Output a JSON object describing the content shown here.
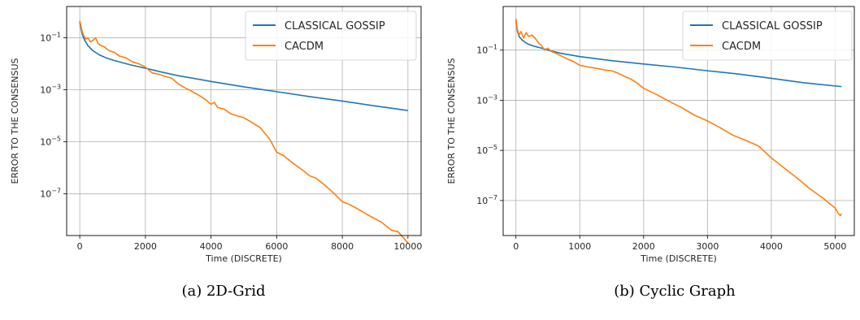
{
  "chart_data": [
    {
      "type": "line",
      "caption": "(a) 2D-Grid",
      "xlabel": "Time (DISCRETE)",
      "ylabel": "ERROR TO THE CONSENSUS",
      "xscale": "linear",
      "yscale": "log",
      "xlim": [
        -400,
        10400
      ],
      "ylim": [
        2.5e-09,
        1.6
      ],
      "xticks": [
        0,
        2000,
        4000,
        6000,
        8000,
        10000
      ],
      "xtick_labels": [
        "0",
        "2000",
        "4000",
        "6000",
        "8000",
        "10000"
      ],
      "yticks": [
        1e-07,
        1e-05,
        0.001,
        0.1
      ],
      "ytick_labels": [
        "10",
        "10",
        "10",
        "10"
      ],
      "ytick_exponents": [
        "−7",
        "−5",
        "−3",
        "−1"
      ],
      "grid": true,
      "legend_position": "top-right",
      "series": [
        {
          "name": "CLASSICAL GOSSIP",
          "color": "#1f77b4",
          "x": [
            0,
            30,
            80,
            150,
            250,
            400,
            600,
            800,
            1000,
            1300,
            1600,
            2000,
            2500,
            3000,
            4000,
            5000,
            6000,
            7000,
            8000,
            9000,
            10000
          ],
          "y": [
            0.4,
            0.25,
            0.13,
            0.08,
            0.05,
            0.032,
            0.022,
            0.017,
            0.014,
            0.011,
            0.0088,
            0.0068,
            0.0048,
            0.0035,
            0.0021,
            0.0013,
            0.00085,
            0.00055,
            0.00037,
            0.00024,
            0.00016
          ]
        },
        {
          "name": "CACDM",
          "color": "#ff7f0e",
          "x": [
            0,
            20,
            60,
            120,
            180,
            250,
            320,
            400,
            480,
            560,
            650,
            750,
            850,
            950,
            1050,
            1200,
            1400,
            1600,
            1800,
            2000,
            2200,
            2400,
            2600,
            2800,
            3000,
            3200,
            3400,
            3500,
            3600,
            3800,
            4000,
            4100,
            4200,
            4400,
            4600,
            4800,
            5000,
            5200,
            5500,
            5800,
            6000,
            6200,
            6500,
            6800,
            7000,
            7200,
            7500,
            7800,
            8000,
            8200,
            8500,
            8800,
            9000,
            9200,
            9500,
            9700,
            9900,
            10000
          ],
          "y": [
            0.45,
            0.35,
            0.2,
            0.12,
            0.09,
            0.1,
            0.07,
            0.08,
            0.1,
            0.06,
            0.05,
            0.045,
            0.035,
            0.03,
            0.028,
            0.02,
            0.017,
            0.012,
            0.01,
            0.0075,
            0.0045,
            0.004,
            0.0033,
            0.0028,
            0.0017,
            0.0012,
            0.0009,
            0.00075,
            0.00065,
            0.00045,
            0.00028,
            0.00033,
            0.00021,
            0.00018,
            0.00012,
            0.0001,
            8.5e-05,
            6e-05,
            3.5e-05,
            1.2e-05,
            4e-06,
            3e-06,
            1.5e-06,
            8e-07,
            5e-07,
            4e-07,
            2e-07,
            9e-08,
            5e-08,
            4e-08,
            2.5e-08,
            1.5e-08,
            1.1e-08,
            8e-09,
            4e-09,
            3.5e-09,
            1.8e-09,
            1.3e-09
          ]
        }
      ]
    },
    {
      "type": "line",
      "caption": "(b) Cyclic Graph",
      "xlabel": "Time (DISCRETE)",
      "ylabel": "ERROR TO THE CONSENSUS",
      "xscale": "linear",
      "yscale": "log",
      "xlim": [
        -200,
        5300
      ],
      "ylim": [
        4e-09,
        5.5
      ],
      "xticks": [
        0,
        1000,
        2000,
        3000,
        4000,
        5000
      ],
      "xtick_labels": [
        "0",
        "1000",
        "2000",
        "3000",
        "4000",
        "5000"
      ],
      "yticks": [
        1e-07,
        1e-05,
        0.001,
        0.1
      ],
      "ytick_labels": [
        "10",
        "10",
        "10",
        "10"
      ],
      "ytick_exponents": [
        "−7",
        "−5",
        "−3",
        "−1"
      ],
      "grid": true,
      "legend_position": "top-right",
      "series": [
        {
          "name": "CLASSICAL GOSSIP",
          "color": "#1f77b4",
          "x": [
            0,
            20,
            50,
            100,
            150,
            200,
            300,
            400,
            500,
            700,
            1000,
            1500,
            2000,
            2500,
            3000,
            3500,
            4000,
            4500,
            5000,
            5100
          ],
          "y": [
            1.5,
            0.6,
            0.35,
            0.25,
            0.2,
            0.17,
            0.14,
            0.12,
            0.1,
            0.075,
            0.055,
            0.038,
            0.028,
            0.021,
            0.015,
            0.011,
            0.0075,
            0.005,
            0.0037,
            0.0035
          ]
        },
        {
          "name": "CACDM",
          "color": "#ff7f0e",
          "x": [
            0,
            20,
            50,
            80,
            120,
            160,
            200,
            250,
            300,
            350,
            400,
            450,
            500,
            550,
            600,
            700,
            800,
            900,
            1000,
            1100,
            1200,
            1300,
            1400,
            1500,
            1600,
            1700,
            1800,
            1900,
            2000,
            2200,
            2400,
            2600,
            2800,
            3000,
            3200,
            3400,
            3600,
            3800,
            4000,
            4200,
            4400,
            4600,
            4800,
            4900,
            5000,
            5050,
            5080,
            5100
          ],
          "y": [
            1.8,
            0.7,
            0.4,
            0.55,
            0.3,
            0.5,
            0.35,
            0.4,
            0.3,
            0.2,
            0.15,
            0.1,
            0.12,
            0.09,
            0.08,
            0.06,
            0.045,
            0.035,
            0.025,
            0.022,
            0.02,
            0.018,
            0.016,
            0.015,
            0.012,
            0.009,
            0.007,
            0.0048,
            0.003,
            0.0017,
            0.0009,
            0.0005,
            0.00025,
            0.00015,
            8e-05,
            4e-05,
            2.5e-05,
            1.5e-05,
            5e-06,
            2e-06,
            8e-07,
            3e-07,
            1.3e-07,
            8e-08,
            5e-08,
            3e-08,
            2.5e-08,
            3e-08
          ]
        }
      ]
    }
  ]
}
